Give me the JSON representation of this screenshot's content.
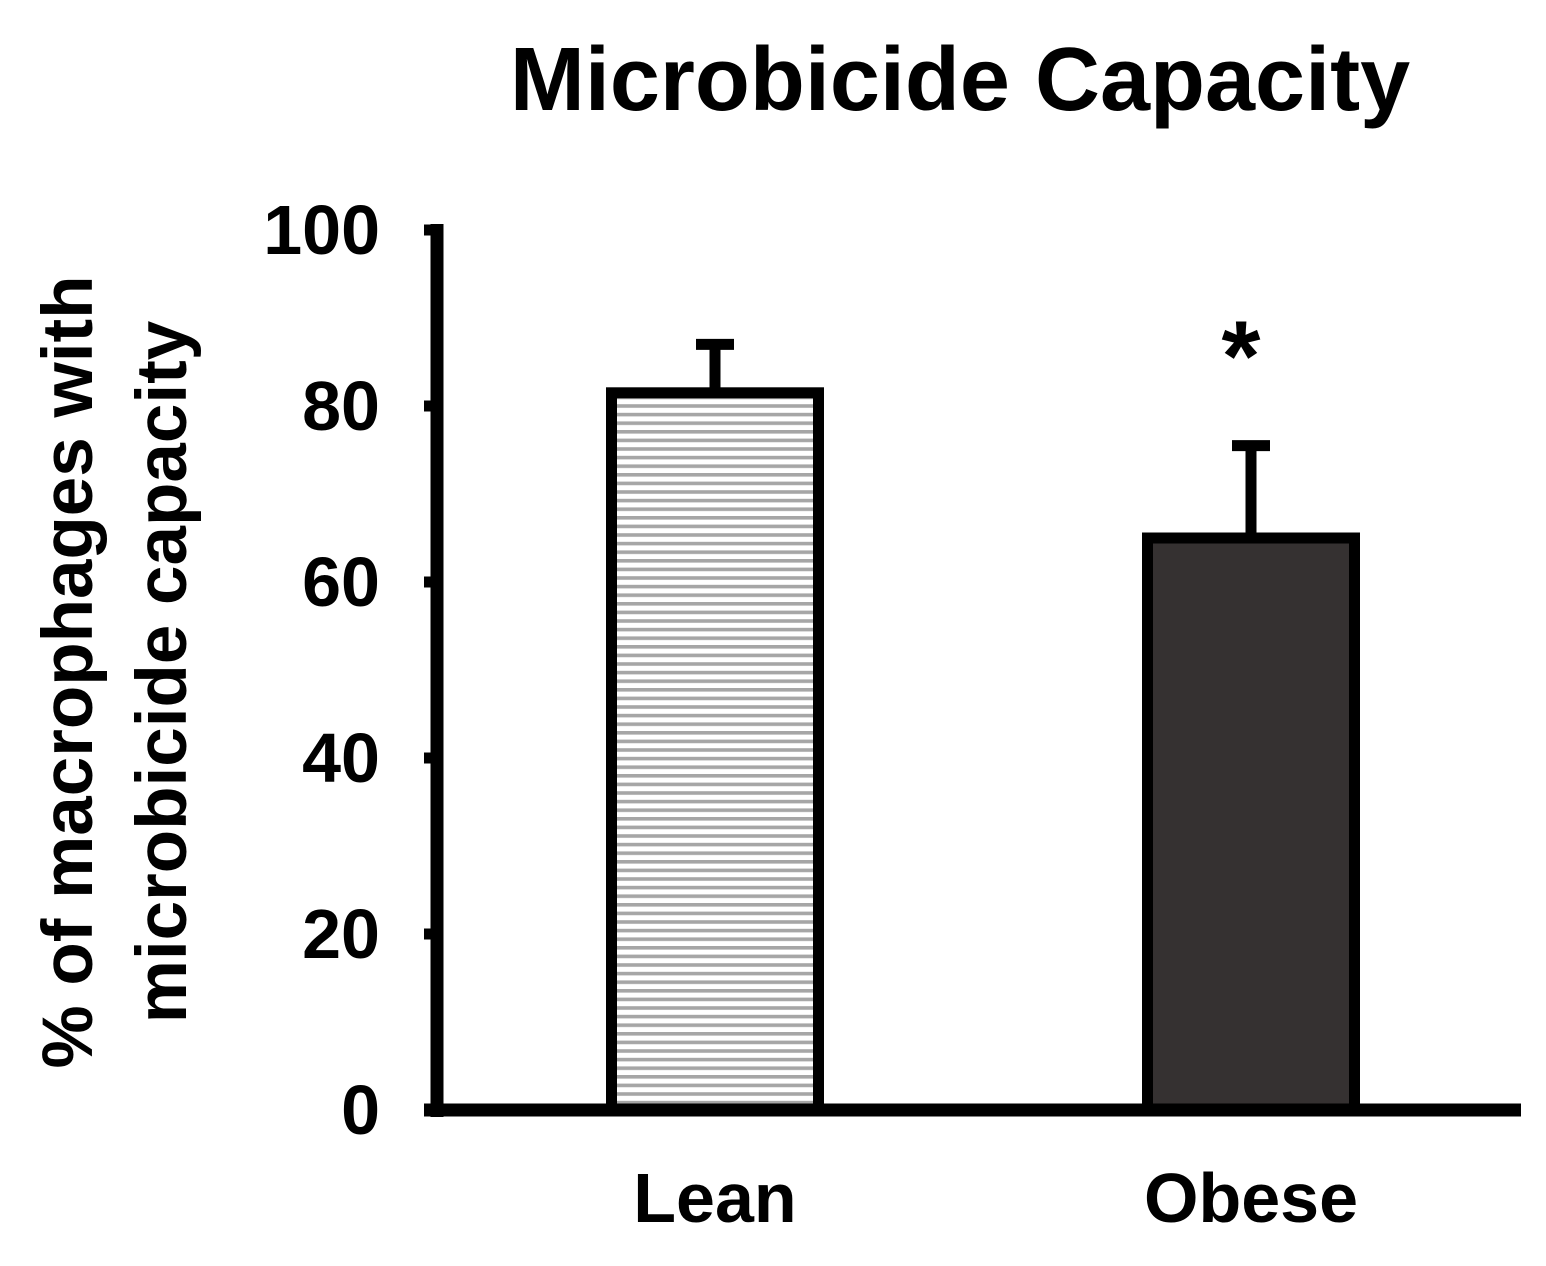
{
  "chart_data": {
    "type": "bar",
    "title": "Microbicide Capacity",
    "ylabel_lines": [
      "% of macrophages with",
      "microbicide capacity"
    ],
    "xlabel": "",
    "ylim": [
      0,
      100
    ],
    "yticks": [
      0,
      20,
      40,
      60,
      80,
      100
    ],
    "categories": [
      "Lean",
      "Obese"
    ],
    "values": [
      81.5,
      65.0
    ],
    "errors": [
      5.5,
      10.5
    ],
    "significance": [
      "",
      "*"
    ],
    "colors": {
      "lean_fill": "#ffffff",
      "lean_stripe": "#a6a6a6",
      "obese_fill": "#353131",
      "outline": "#000000"
    },
    "legend": "none",
    "grid": false
  }
}
